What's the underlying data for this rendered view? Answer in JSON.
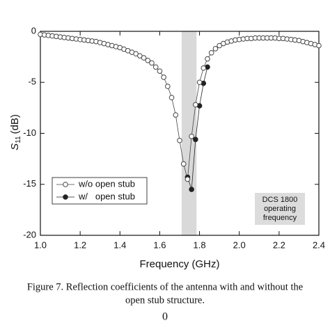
{
  "chart_data": {
    "type": "line",
    "x_label": "Frequency (GHz)",
    "y_label": {
      "symbol": "S",
      "subscript": "11",
      "unit": "(dB)"
    },
    "xlim": [
      1.0,
      2.4
    ],
    "xticks": [
      {
        "value": 1,
        "label": "1.0"
      },
      1.2,
      1.4,
      1.6,
      1.8,
      {
        "value": 2,
        "label": "2.0"
      },
      2.2,
      2.4
    ],
    "ylim": [
      -20,
      0
    ],
    "yticks": [
      -20,
      -15,
      -10,
      -5,
      0
    ],
    "legend": "lower left",
    "band": {
      "x": [
        1.71,
        1.785
      ],
      "color": "#d9d9d9"
    },
    "annotation": [
      "DCS 1800",
      "operating",
      "frequency"
    ],
    "series": [
      {
        "name": "w/   open stub",
        "color": "#222222",
        "marker": "filled",
        "x": [
          1.74,
          1.76,
          1.78,
          1.8,
          1.82,
          1.84
        ],
        "values": [
          -14.3,
          -15.5,
          -10.6,
          -7.3,
          -5.1,
          -3.5
        ]
      },
      {
        "name": "w/o open stub",
        "color": "#444444",
        "marker": "open",
        "x": [
          1.0,
          1.02,
          1.04,
          1.06,
          1.08,
          1.1,
          1.12,
          1.14,
          1.16,
          1.18,
          1.2,
          1.22,
          1.24,
          1.26,
          1.28,
          1.3,
          1.32,
          1.34,
          1.36,
          1.38,
          1.4,
          1.42,
          1.44,
          1.46,
          1.48,
          1.5,
          1.52,
          1.54,
          1.56,
          1.58,
          1.6,
          1.62,
          1.64,
          1.66,
          1.68,
          1.7,
          1.72,
          1.74,
          1.76,
          1.78,
          1.8,
          1.82,
          1.84,
          1.86,
          1.88,
          1.9,
          1.92,
          1.94,
          1.96,
          1.98,
          2.0,
          2.02,
          2.04,
          2.06,
          2.08,
          2.1,
          2.12,
          2.14,
          2.16,
          2.18,
          2.2,
          2.22,
          2.24,
          2.26,
          2.28,
          2.3,
          2.32,
          2.34,
          2.36,
          2.38,
          2.4
        ],
        "values": [
          -0.3,
          -0.35,
          -0.4,
          -0.45,
          -0.5,
          -0.55,
          -0.6,
          -0.65,
          -0.7,
          -0.75,
          -0.8,
          -0.85,
          -0.9,
          -0.95,
          -1.0,
          -1.1,
          -1.2,
          -1.3,
          -1.4,
          -1.5,
          -1.6,
          -1.75,
          -1.9,
          -2.05,
          -2.2,
          -2.4,
          -2.6,
          -2.85,
          -3.1,
          -3.5,
          -3.9,
          -4.5,
          -5.4,
          -6.5,
          -8.2,
          -10.7,
          -13.0,
          -14.5,
          -10.3,
          -7.2,
          -5.0,
          -3.6,
          -2.7,
          -2.1,
          -1.7,
          -1.4,
          -1.2,
          -1.05,
          -0.95,
          -0.85,
          -0.8,
          -0.75,
          -0.7,
          -0.7,
          -0.65,
          -0.65,
          -0.65,
          -0.65,
          -0.65,
          -0.65,
          -0.7,
          -0.7,
          -0.75,
          -0.8,
          -0.85,
          -0.9,
          -1.0,
          -1.1,
          -1.2,
          -1.3,
          -1.4
        ]
      }
    ]
  },
  "caption": [
    "Figure 7. Reflection coefficients of the antenna with and without the",
    "open stub structure."
  ],
  "page_marker": "0"
}
